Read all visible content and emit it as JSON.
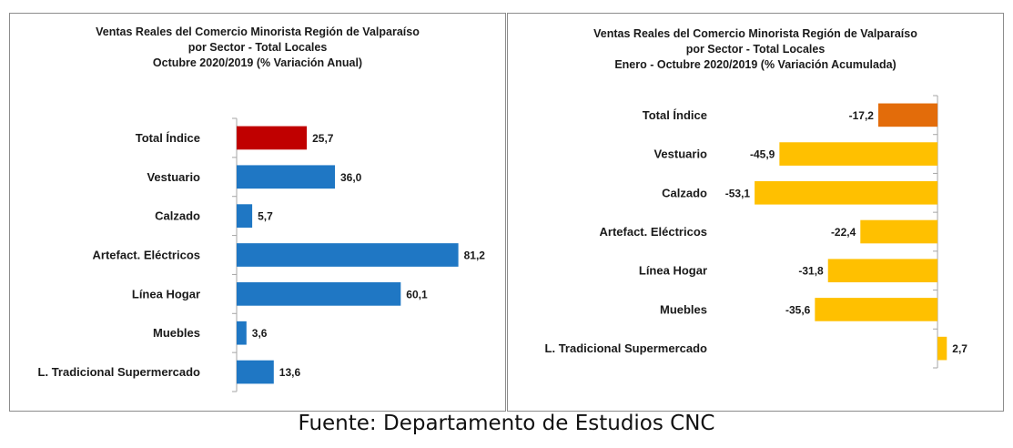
{
  "chart_data": [
    {
      "type": "bar",
      "orientation": "horizontal",
      "title": [
        "Ventas Reales del Comercio Minorista Región de Valparaíso",
        "por Sector - Total Locales",
        "Octubre 2020/2019 (% Variación Anual)"
      ],
      "categories": [
        "Total Índice",
        "Vestuario",
        "Calzado",
        "Artefact. Eléctricos",
        "Línea Hogar",
        "Muebles",
        "L. Tradicional Supermercado"
      ],
      "values": [
        25.7,
        36.0,
        5.7,
        81.2,
        60.1,
        3.6,
        13.6
      ],
      "labels": [
        "25,7",
        "36,0",
        "5,7",
        "81,2",
        "60,1",
        "3,6",
        "13,6"
      ],
      "colors": [
        "#c00000",
        "#1f77c4",
        "#1f77c4",
        "#1f77c4",
        "#1f77c4",
        "#1f77c4",
        "#1f77c4"
      ],
      "xlim": [
        0,
        90
      ],
      "grid": false,
      "legend": false
    },
    {
      "type": "bar",
      "orientation": "horizontal",
      "title": [
        "Ventas Reales del Comercio Minorista Región de Valparaíso",
        "por Sector  - Total Locales",
        "Enero - Octubre  2020/2019 (% Variación Acumulada)"
      ],
      "categories": [
        "Total Índice",
        "Vestuario",
        "Calzado",
        "Artefact. Eléctricos",
        "Línea Hogar",
        "Muebles",
        "L. Tradicional Supermercado"
      ],
      "values": [
        -17.2,
        -45.9,
        -53.1,
        -22.4,
        -31.8,
        -35.6,
        2.7
      ],
      "labels": [
        "-17,2",
        "-45,9",
        "-53,1",
        "-22,4",
        "-31,8",
        "-35,6",
        "2,7"
      ],
      "colors": [
        "#e36c0a",
        "#ffc000",
        "#ffc000",
        "#ffc000",
        "#ffc000",
        "#ffc000",
        "#ffc000"
      ],
      "xlim": [
        -60,
        5
      ],
      "grid": false,
      "legend": false
    }
  ],
  "footer": {
    "source": "Fuente: Departamento de Estudios CNC"
  }
}
